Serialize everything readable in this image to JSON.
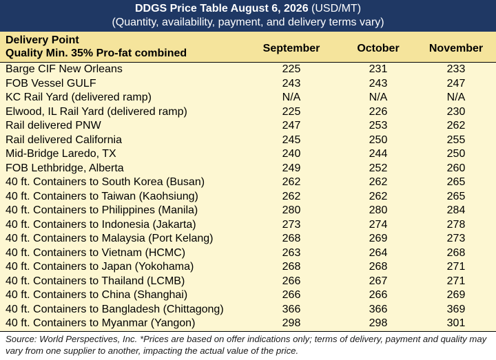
{
  "title": {
    "bold": "DDGS Price Table August 6, 2026",
    "units": " (USD/MT)",
    "subtitle": "(Quantity, availability, payment, and delivery terms vary)"
  },
  "header": {
    "left_line1": "Delivery Point",
    "left_line2": "Quality Min. 35% Pro-fat combined",
    "col1": "September",
    "col2": "October",
    "col3": "November"
  },
  "rows": [
    {
      "name": "Barge CIF New Orleans",
      "sep": "225",
      "oct": "231",
      "nov": "233"
    },
    {
      "name": "FOB Vessel GULF",
      "sep": "243",
      "oct": "243",
      "nov": "247"
    },
    {
      "name": "KC Rail Yard (delivered ramp)",
      "sep": "N/A",
      "oct": "N/A",
      "nov": "N/A"
    },
    {
      "name": "Elwood, IL Rail Yard (delivered ramp)",
      "sep": "225",
      "oct": "226",
      "nov": "230"
    },
    {
      "name": "Rail delivered PNW",
      "sep": "247",
      "oct": "253",
      "nov": "262"
    },
    {
      "name": "Rail delivered California",
      "sep": "245",
      "oct": "250",
      "nov": "255"
    },
    {
      "name": "Mid-Bridge Laredo, TX",
      "sep": "240",
      "oct": "244",
      "nov": "250"
    },
    {
      "name": "FOB Lethbridge, Alberta",
      "sep": "249",
      "oct": "252",
      "nov": "260"
    },
    {
      "name": "40 ft. Containers to South Korea (Busan)",
      "sep": "262",
      "oct": "262",
      "nov": "265"
    },
    {
      "name": "40 ft. Containers to Taiwan (Kaohsiung)",
      "sep": "262",
      "oct": "262",
      "nov": "265"
    },
    {
      "name": "40 ft. Containers to Philippines (Manila)",
      "sep": "280",
      "oct": "280",
      "nov": "284"
    },
    {
      "name": "40 ft. Containers to Indonesia (Jakarta)",
      "sep": "273",
      "oct": "274",
      "nov": "278"
    },
    {
      "name": "40 ft. Containers to Malaysia (Port Kelang)",
      "sep": "268",
      "oct": "269",
      "nov": "273"
    },
    {
      "name": "40 ft. Containers to Vietnam (HCMC)",
      "sep": "263",
      "oct": "264",
      "nov": "268"
    },
    {
      "name": "40 ft. Containers to Japan (Yokohama)",
      "sep": "268",
      "oct": "268",
      "nov": "271"
    },
    {
      "name": "40 ft. Containers to Thailand (LCMB)",
      "sep": "266",
      "oct": "267",
      "nov": "271"
    },
    {
      "name": "40 ft. Containers to China (Shanghai)",
      "sep": "266",
      "oct": "266",
      "nov": "269"
    },
    {
      "name": "40 ft. Containers to Bangladesh (Chittagong)",
      "sep": "366",
      "oct": "366",
      "nov": "369"
    },
    {
      "name": "40 ft. Containers to Myanmar (Yangon)",
      "sep": "298",
      "oct": "298",
      "nov": "301"
    }
  ],
  "footer": {
    "note": "Source: World Perspectives, Inc. *Prices are based on offer indications only; terms of delivery, payment and quality may vary from one supplier to another, impacting the actual value of the price."
  },
  "colors": {
    "title_bg": "#1f3864",
    "header_bg": "#f5e49c",
    "body_bg": "#fdf7d2"
  }
}
